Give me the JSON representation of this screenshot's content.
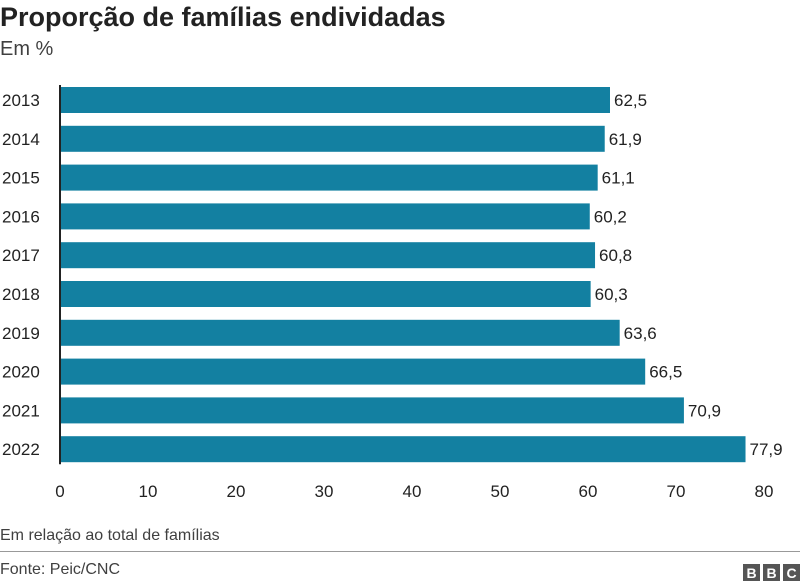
{
  "chart_data": {
    "type": "bar",
    "orientation": "horizontal",
    "title": "Proporção de famílias endividadas",
    "subtitle": "Em %",
    "categories": [
      "2013",
      "2014",
      "2015",
      "2016",
      "2017",
      "2018",
      "2019",
      "2020",
      "2021",
      "2022"
    ],
    "values": [
      62.5,
      61.9,
      61.1,
      60.2,
      60.8,
      60.3,
      63.6,
      66.5,
      70.9,
      77.9
    ],
    "value_labels": [
      "62,5",
      "61,9",
      "61,1",
      "60,2",
      "60,8",
      "60,3",
      "63,6",
      "66,5",
      "70,9",
      "77,9"
    ],
    "xlim": [
      0,
      80
    ],
    "xticks": [
      0,
      10,
      20,
      30,
      40,
      50,
      60,
      70,
      80
    ],
    "grid": false,
    "bar_color": "#1380a1"
  },
  "footer": {
    "note": "Em relação ao total de famílias",
    "source": "Fonte: Peic/CNC",
    "logo": "BBC"
  }
}
